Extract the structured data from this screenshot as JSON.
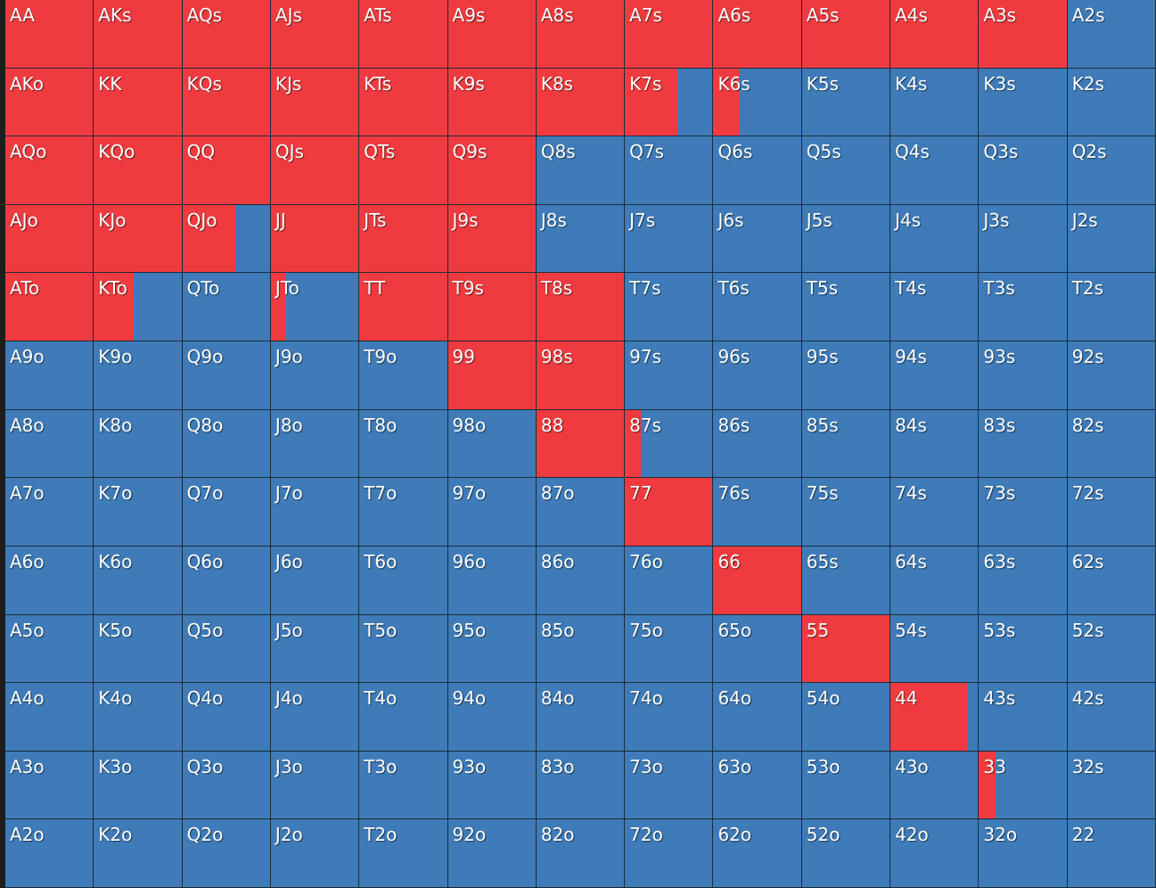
{
  "colors": {
    "action": "#ef3b3f",
    "other": "#3e7bb8",
    "border": "#1c2b3a"
  },
  "hand_grid": {
    "rows": [
      [
        {
          "hand": "AA",
          "action_freq": 1
        },
        {
          "hand": "AKs",
          "action_freq": 1
        },
        {
          "hand": "AQs",
          "action_freq": 1
        },
        {
          "hand": "AJs",
          "action_freq": 1
        },
        {
          "hand": "ATs",
          "action_freq": 1
        },
        {
          "hand": "A9s",
          "action_freq": 1
        },
        {
          "hand": "A8s",
          "action_freq": 1
        },
        {
          "hand": "A7s",
          "action_freq": 1
        },
        {
          "hand": "A6s",
          "action_freq": 1
        },
        {
          "hand": "A5s",
          "action_freq": 1
        },
        {
          "hand": "A4s",
          "action_freq": 1
        },
        {
          "hand": "A3s",
          "action_freq": 1
        },
        {
          "hand": "A2s",
          "action_freq": 0
        }
      ],
      [
        {
          "hand": "AKo",
          "action_freq": 1
        },
        {
          "hand": "KK",
          "action_freq": 1
        },
        {
          "hand": "KQs",
          "action_freq": 1
        },
        {
          "hand": "KJs",
          "action_freq": 1
        },
        {
          "hand": "KTs",
          "action_freq": 1
        },
        {
          "hand": "K9s",
          "action_freq": 1
        },
        {
          "hand": "K8s",
          "action_freq": 1
        },
        {
          "hand": "K7s",
          "action_freq": 0.6
        },
        {
          "hand": "K6s",
          "action_freq": 0.3
        },
        {
          "hand": "K5s",
          "action_freq": 0
        },
        {
          "hand": "K4s",
          "action_freq": 0
        },
        {
          "hand": "K3s",
          "action_freq": 0
        },
        {
          "hand": "K2s",
          "action_freq": 0
        }
      ],
      [
        {
          "hand": "AQo",
          "action_freq": 1
        },
        {
          "hand": "KQo",
          "action_freq": 1
        },
        {
          "hand": "QQ",
          "action_freq": 1
        },
        {
          "hand": "QJs",
          "action_freq": 1
        },
        {
          "hand": "QTs",
          "action_freq": 1
        },
        {
          "hand": "Q9s",
          "action_freq": 1
        },
        {
          "hand": "Q8s",
          "action_freq": 0
        },
        {
          "hand": "Q7s",
          "action_freq": 0
        },
        {
          "hand": "Q6s",
          "action_freq": 0
        },
        {
          "hand": "Q5s",
          "action_freq": 0
        },
        {
          "hand": "Q4s",
          "action_freq": 0
        },
        {
          "hand": "Q3s",
          "action_freq": 0
        },
        {
          "hand": "Q2s",
          "action_freq": 0
        }
      ],
      [
        {
          "hand": "AJo",
          "action_freq": 1
        },
        {
          "hand": "KJo",
          "action_freq": 1
        },
        {
          "hand": "QJo",
          "action_freq": 0.6
        },
        {
          "hand": "JJ",
          "action_freq": 1
        },
        {
          "hand": "JTs",
          "action_freq": 1
        },
        {
          "hand": "J9s",
          "action_freq": 1
        },
        {
          "hand": "J8s",
          "action_freq": 0
        },
        {
          "hand": "J7s",
          "action_freq": 0
        },
        {
          "hand": "J6s",
          "action_freq": 0
        },
        {
          "hand": "J5s",
          "action_freq": 0
        },
        {
          "hand": "J4s",
          "action_freq": 0
        },
        {
          "hand": "J3s",
          "action_freq": 0
        },
        {
          "hand": "J2s",
          "action_freq": 0
        }
      ],
      [
        {
          "hand": "ATo",
          "action_freq": 1
        },
        {
          "hand": "KTo",
          "action_freq": 0.45
        },
        {
          "hand": "QTo",
          "action_freq": 0
        },
        {
          "hand": "JTo",
          "action_freq": 0.17
        },
        {
          "hand": "TT",
          "action_freq": 1
        },
        {
          "hand": "T9s",
          "action_freq": 1
        },
        {
          "hand": "T8s",
          "action_freq": 1
        },
        {
          "hand": "T7s",
          "action_freq": 0
        },
        {
          "hand": "T6s",
          "action_freq": 0
        },
        {
          "hand": "T5s",
          "action_freq": 0
        },
        {
          "hand": "T4s",
          "action_freq": 0
        },
        {
          "hand": "T3s",
          "action_freq": 0
        },
        {
          "hand": "T2s",
          "action_freq": 0
        }
      ],
      [
        {
          "hand": "A9o",
          "action_freq": 0
        },
        {
          "hand": "K9o",
          "action_freq": 0
        },
        {
          "hand": "Q9o",
          "action_freq": 0
        },
        {
          "hand": "J9o",
          "action_freq": 0
        },
        {
          "hand": "T9o",
          "action_freq": 0
        },
        {
          "hand": "99",
          "action_freq": 1
        },
        {
          "hand": "98s",
          "action_freq": 1
        },
        {
          "hand": "97s",
          "action_freq": 0
        },
        {
          "hand": "96s",
          "action_freq": 0
        },
        {
          "hand": "95s",
          "action_freq": 0
        },
        {
          "hand": "94s",
          "action_freq": 0
        },
        {
          "hand": "93s",
          "action_freq": 0
        },
        {
          "hand": "92s",
          "action_freq": 0
        }
      ],
      [
        {
          "hand": "A8o",
          "action_freq": 0
        },
        {
          "hand": "K8o",
          "action_freq": 0
        },
        {
          "hand": "Q8o",
          "action_freq": 0
        },
        {
          "hand": "J8o",
          "action_freq": 0
        },
        {
          "hand": "T8o",
          "action_freq": 0
        },
        {
          "hand": "98o",
          "action_freq": 0
        },
        {
          "hand": "88",
          "action_freq": 1
        },
        {
          "hand": "87s",
          "action_freq": 0.18
        },
        {
          "hand": "86s",
          "action_freq": 0
        },
        {
          "hand": "85s",
          "action_freq": 0
        },
        {
          "hand": "84s",
          "action_freq": 0
        },
        {
          "hand": "83s",
          "action_freq": 0
        },
        {
          "hand": "82s",
          "action_freq": 0
        }
      ],
      [
        {
          "hand": "A7o",
          "action_freq": 0
        },
        {
          "hand": "K7o",
          "action_freq": 0
        },
        {
          "hand": "Q7o",
          "action_freq": 0
        },
        {
          "hand": "J7o",
          "action_freq": 0
        },
        {
          "hand": "T7o",
          "action_freq": 0
        },
        {
          "hand": "97o",
          "action_freq": 0
        },
        {
          "hand": "87o",
          "action_freq": 0
        },
        {
          "hand": "77",
          "action_freq": 1
        },
        {
          "hand": "76s",
          "action_freq": 0
        },
        {
          "hand": "75s",
          "action_freq": 0
        },
        {
          "hand": "74s",
          "action_freq": 0
        },
        {
          "hand": "73s",
          "action_freq": 0
        },
        {
          "hand": "72s",
          "action_freq": 0
        }
      ],
      [
        {
          "hand": "A6o",
          "action_freq": 0
        },
        {
          "hand": "K6o",
          "action_freq": 0
        },
        {
          "hand": "Q6o",
          "action_freq": 0
        },
        {
          "hand": "J6o",
          "action_freq": 0
        },
        {
          "hand": "T6o",
          "action_freq": 0
        },
        {
          "hand": "96o",
          "action_freq": 0
        },
        {
          "hand": "86o",
          "action_freq": 0
        },
        {
          "hand": "76o",
          "action_freq": 0
        },
        {
          "hand": "66",
          "action_freq": 1
        },
        {
          "hand": "65s",
          "action_freq": 0
        },
        {
          "hand": "64s",
          "action_freq": 0
        },
        {
          "hand": "63s",
          "action_freq": 0
        },
        {
          "hand": "62s",
          "action_freq": 0
        }
      ],
      [
        {
          "hand": "A5o",
          "action_freq": 0
        },
        {
          "hand": "K5o",
          "action_freq": 0
        },
        {
          "hand": "Q5o",
          "action_freq": 0
        },
        {
          "hand": "J5o",
          "action_freq": 0
        },
        {
          "hand": "T5o",
          "action_freq": 0
        },
        {
          "hand": "95o",
          "action_freq": 0
        },
        {
          "hand": "85o",
          "action_freq": 0
        },
        {
          "hand": "75o",
          "action_freq": 0
        },
        {
          "hand": "65o",
          "action_freq": 0
        },
        {
          "hand": "55",
          "action_freq": 1
        },
        {
          "hand": "54s",
          "action_freq": 0
        },
        {
          "hand": "53s",
          "action_freq": 0
        },
        {
          "hand": "52s",
          "action_freq": 0
        }
      ],
      [
        {
          "hand": "A4o",
          "action_freq": 0
        },
        {
          "hand": "K4o",
          "action_freq": 0
        },
        {
          "hand": "Q4o",
          "action_freq": 0
        },
        {
          "hand": "J4o",
          "action_freq": 0
        },
        {
          "hand": "T4o",
          "action_freq": 0
        },
        {
          "hand": "94o",
          "action_freq": 0
        },
        {
          "hand": "84o",
          "action_freq": 0
        },
        {
          "hand": "74o",
          "action_freq": 0
        },
        {
          "hand": "64o",
          "action_freq": 0
        },
        {
          "hand": "54o",
          "action_freq": 0
        },
        {
          "hand": "44",
          "action_freq": 0.87
        },
        {
          "hand": "43s",
          "action_freq": 0
        },
        {
          "hand": "42s",
          "action_freq": 0
        }
      ],
      [
        {
          "hand": "A3o",
          "action_freq": 0
        },
        {
          "hand": "K3o",
          "action_freq": 0
        },
        {
          "hand": "Q3o",
          "action_freq": 0
        },
        {
          "hand": "J3o",
          "action_freq": 0
        },
        {
          "hand": "T3o",
          "action_freq": 0
        },
        {
          "hand": "93o",
          "action_freq": 0
        },
        {
          "hand": "83o",
          "action_freq": 0
        },
        {
          "hand": "73o",
          "action_freq": 0
        },
        {
          "hand": "63o",
          "action_freq": 0
        },
        {
          "hand": "53o",
          "action_freq": 0
        },
        {
          "hand": "43o",
          "action_freq": 0
        },
        {
          "hand": "33",
          "action_freq": 0.19
        },
        {
          "hand": "32s",
          "action_freq": 0
        }
      ],
      [
        {
          "hand": "A2o",
          "action_freq": 0
        },
        {
          "hand": "K2o",
          "action_freq": 0
        },
        {
          "hand": "Q2o",
          "action_freq": 0
        },
        {
          "hand": "J2o",
          "action_freq": 0
        },
        {
          "hand": "T2o",
          "action_freq": 0
        },
        {
          "hand": "92o",
          "action_freq": 0
        },
        {
          "hand": "82o",
          "action_freq": 0
        },
        {
          "hand": "72o",
          "action_freq": 0
        },
        {
          "hand": "62o",
          "action_freq": 0
        },
        {
          "hand": "52o",
          "action_freq": 0
        },
        {
          "hand": "42o",
          "action_freq": 0
        },
        {
          "hand": "32o",
          "action_freq": 0
        },
        {
          "hand": "22",
          "action_freq": 0
        }
      ]
    ]
  }
}
